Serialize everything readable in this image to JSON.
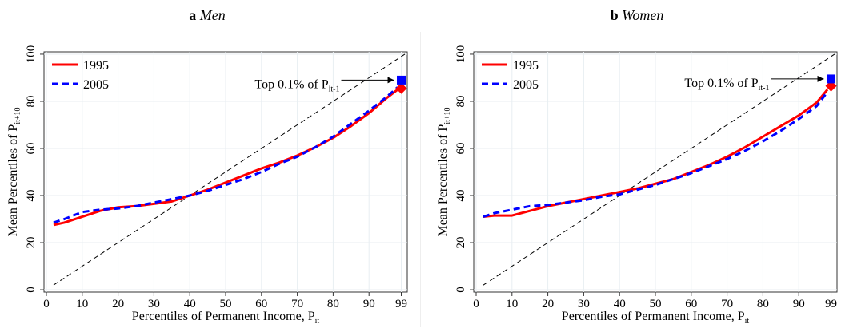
{
  "chart_data": [
    {
      "type": "line",
      "panel_letter": "a",
      "title": "Men",
      "xlabel": "Percentiles of Permanent Income, P",
      "xlabel_sub": "it",
      "ylabel": "Mean Percentiles of P",
      "ylabel_sub": "it+10",
      "xlim": [
        0,
        100
      ],
      "ylim": [
        -1,
        101
      ],
      "xticks": [
        0,
        10,
        20,
        30,
        40,
        50,
        60,
        70,
        80,
        90,
        99
      ],
      "yticks": [
        0,
        20,
        40,
        60,
        80,
        100
      ],
      "grid": true,
      "legend_position": "top-left",
      "annotation": {
        "text": "Top 0.1% of P",
        "sub": "it-1"
      },
      "series": [
        {
          "name": "1995",
          "color": "#ff0000",
          "style": "solid",
          "marker": "diamond",
          "x": [
            2,
            5,
            10,
            15,
            20,
            25,
            30,
            35,
            40,
            45,
            50,
            55,
            60,
            65,
            70,
            75,
            80,
            85,
            90,
            95,
            98
          ],
          "y": [
            27.5,
            28.5,
            31,
            33.5,
            35,
            35.5,
            36.5,
            37.5,
            40,
            42.5,
            45.5,
            48.5,
            51.5,
            54,
            57,
            60.5,
            64.5,
            69.5,
            75,
            81.5,
            85
          ],
          "end_point": [
            99,
            85.5
          ]
        },
        {
          "name": "2005",
          "color": "#0000ff",
          "style": "dashed",
          "marker": "square",
          "x": [
            2,
            5,
            10,
            15,
            20,
            25,
            30,
            35,
            40,
            45,
            50,
            55,
            60,
            65,
            70,
            75,
            80,
            85,
            90,
            95,
            98
          ],
          "y": [
            28.5,
            30,
            33,
            34,
            34.5,
            35.5,
            37,
            38.5,
            40,
            42,
            44.5,
            47,
            50,
            53.5,
            56.5,
            60.5,
            65,
            70.5,
            76,
            82,
            86
          ],
          "end_point": [
            99,
            89
          ]
        }
      ]
    },
    {
      "type": "line",
      "panel_letter": "b",
      "title": "Women",
      "xlabel": "Percentiles of Permanent Income, P",
      "xlabel_sub": "it",
      "ylabel": "Mean Percentiles of P",
      "ylabel_sub": "it+10",
      "xlim": [
        0,
        100
      ],
      "ylim": [
        -1,
        101
      ],
      "xticks": [
        0,
        10,
        20,
        30,
        40,
        50,
        60,
        70,
        80,
        90,
        99
      ],
      "yticks": [
        0,
        20,
        40,
        60,
        80,
        100
      ],
      "grid": true,
      "legend_position": "top-left",
      "annotation": {
        "text": "Top 0.1% of P",
        "sub": "it-1"
      },
      "series": [
        {
          "name": "1995",
          "color": "#ff0000",
          "style": "solid",
          "marker": "diamond",
          "x": [
            2,
            5,
            10,
            15,
            20,
            25,
            30,
            35,
            40,
            45,
            50,
            55,
            60,
            65,
            70,
            75,
            80,
            85,
            90,
            95,
            98
          ],
          "y": [
            31,
            31.5,
            31.5,
            33.5,
            35.5,
            37,
            38.5,
            40,
            41.5,
            43,
            45,
            47,
            50,
            53,
            56.5,
            60.5,
            65,
            69.5,
            74,
            79.5,
            85
          ],
          "end_point": [
            99,
            86.5
          ]
        },
        {
          "name": "2005",
          "color": "#0000ff",
          "style": "dashed",
          "marker": "square",
          "x": [
            2,
            5,
            10,
            15,
            20,
            25,
            30,
            35,
            40,
            45,
            50,
            55,
            60,
            65,
            70,
            75,
            80,
            85,
            90,
            95,
            98
          ],
          "y": [
            31,
            32.5,
            34,
            35.5,
            36,
            37,
            38,
            39.5,
            40.5,
            42.5,
            44.5,
            47,
            49.5,
            52.5,
            55.5,
            59,
            63,
            67.5,
            72.5,
            78,
            84
          ],
          "end_point": [
            99,
            89.5
          ]
        }
      ]
    }
  ]
}
